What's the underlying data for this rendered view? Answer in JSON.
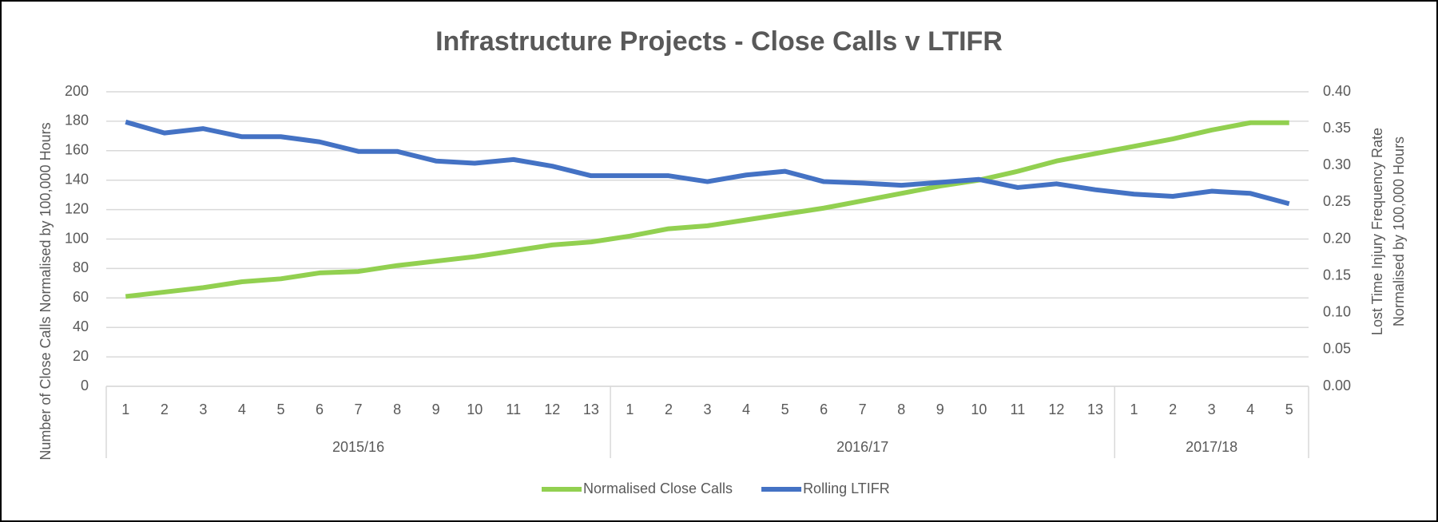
{
  "chart_data": {
    "type": "line",
    "title": "Infrastructure Projects - Close Calls v LTIFR",
    "y_label": "Number of Close Calls Normalised by 100,000 Hours",
    "y2_label": [
      "Lost Time Injury Frequency Rate",
      "Normalised by 100,000 Hours"
    ],
    "categories": [
      "1",
      "2",
      "3",
      "4",
      "5",
      "6",
      "7",
      "8",
      "9",
      "10",
      "11",
      "12",
      "13",
      "1",
      "2",
      "3",
      "4",
      "5",
      "6",
      "7",
      "8",
      "9",
      "10",
      "11",
      "12",
      "13",
      "1",
      "2",
      "3",
      "4",
      "5"
    ],
    "category_groups": [
      {
        "label": "2015/16",
        "count": 13
      },
      {
        "label": "2016/17",
        "count": 13
      },
      {
        "label": "2017/18",
        "count": 5
      }
    ],
    "series": [
      {
        "name": "Normalised Close Calls",
        "color": "#92d050",
        "axis": "y",
        "values": [
          61,
          64,
          67,
          71,
          73,
          77,
          78,
          82,
          85,
          88,
          92,
          96,
          98,
          102,
          107,
          109,
          113,
          117,
          121,
          126,
          131,
          136,
          140,
          146,
          153,
          158,
          163,
          168,
          174,
          179,
          179
        ]
      },
      {
        "name": "Rolling LTIFR",
        "color": "#4472c4",
        "axis": "y2",
        "values": [
          0.359,
          0.344,
          0.35,
          0.339,
          0.339,
          0.332,
          0.319,
          0.319,
          0.306,
          0.303,
          0.308,
          0.299,
          0.286,
          0.286,
          0.286,
          0.278,
          0.287,
          0.292,
          0.278,
          0.276,
          0.273,
          0.277,
          0.281,
          0.27,
          0.275,
          0.267,
          0.261,
          0.258,
          0.265,
          0.262,
          0.248
        ]
      }
    ],
    "ylim": [
      0,
      200
    ],
    "yticks": [
      0,
      20,
      40,
      60,
      80,
      100,
      120,
      140,
      160,
      180,
      200
    ],
    "y2lim": [
      0,
      0.4
    ],
    "y2ticks": [
      {
        "value": 0,
        "label": "0.00"
      },
      {
        "value": 0.05,
        "label": "0.05"
      },
      {
        "value": 0.1,
        "label": "0.10"
      },
      {
        "value": 0.15,
        "label": "0.15"
      },
      {
        "value": 0.2,
        "label": "0.20"
      },
      {
        "value": 0.25,
        "label": "0.25"
      },
      {
        "value": 0.3,
        "label": "0.30"
      },
      {
        "value": 0.35,
        "label": "0.35"
      },
      {
        "value": 0.4,
        "label": "0.40"
      }
    ],
    "grid": true,
    "legend": "bottom"
  }
}
